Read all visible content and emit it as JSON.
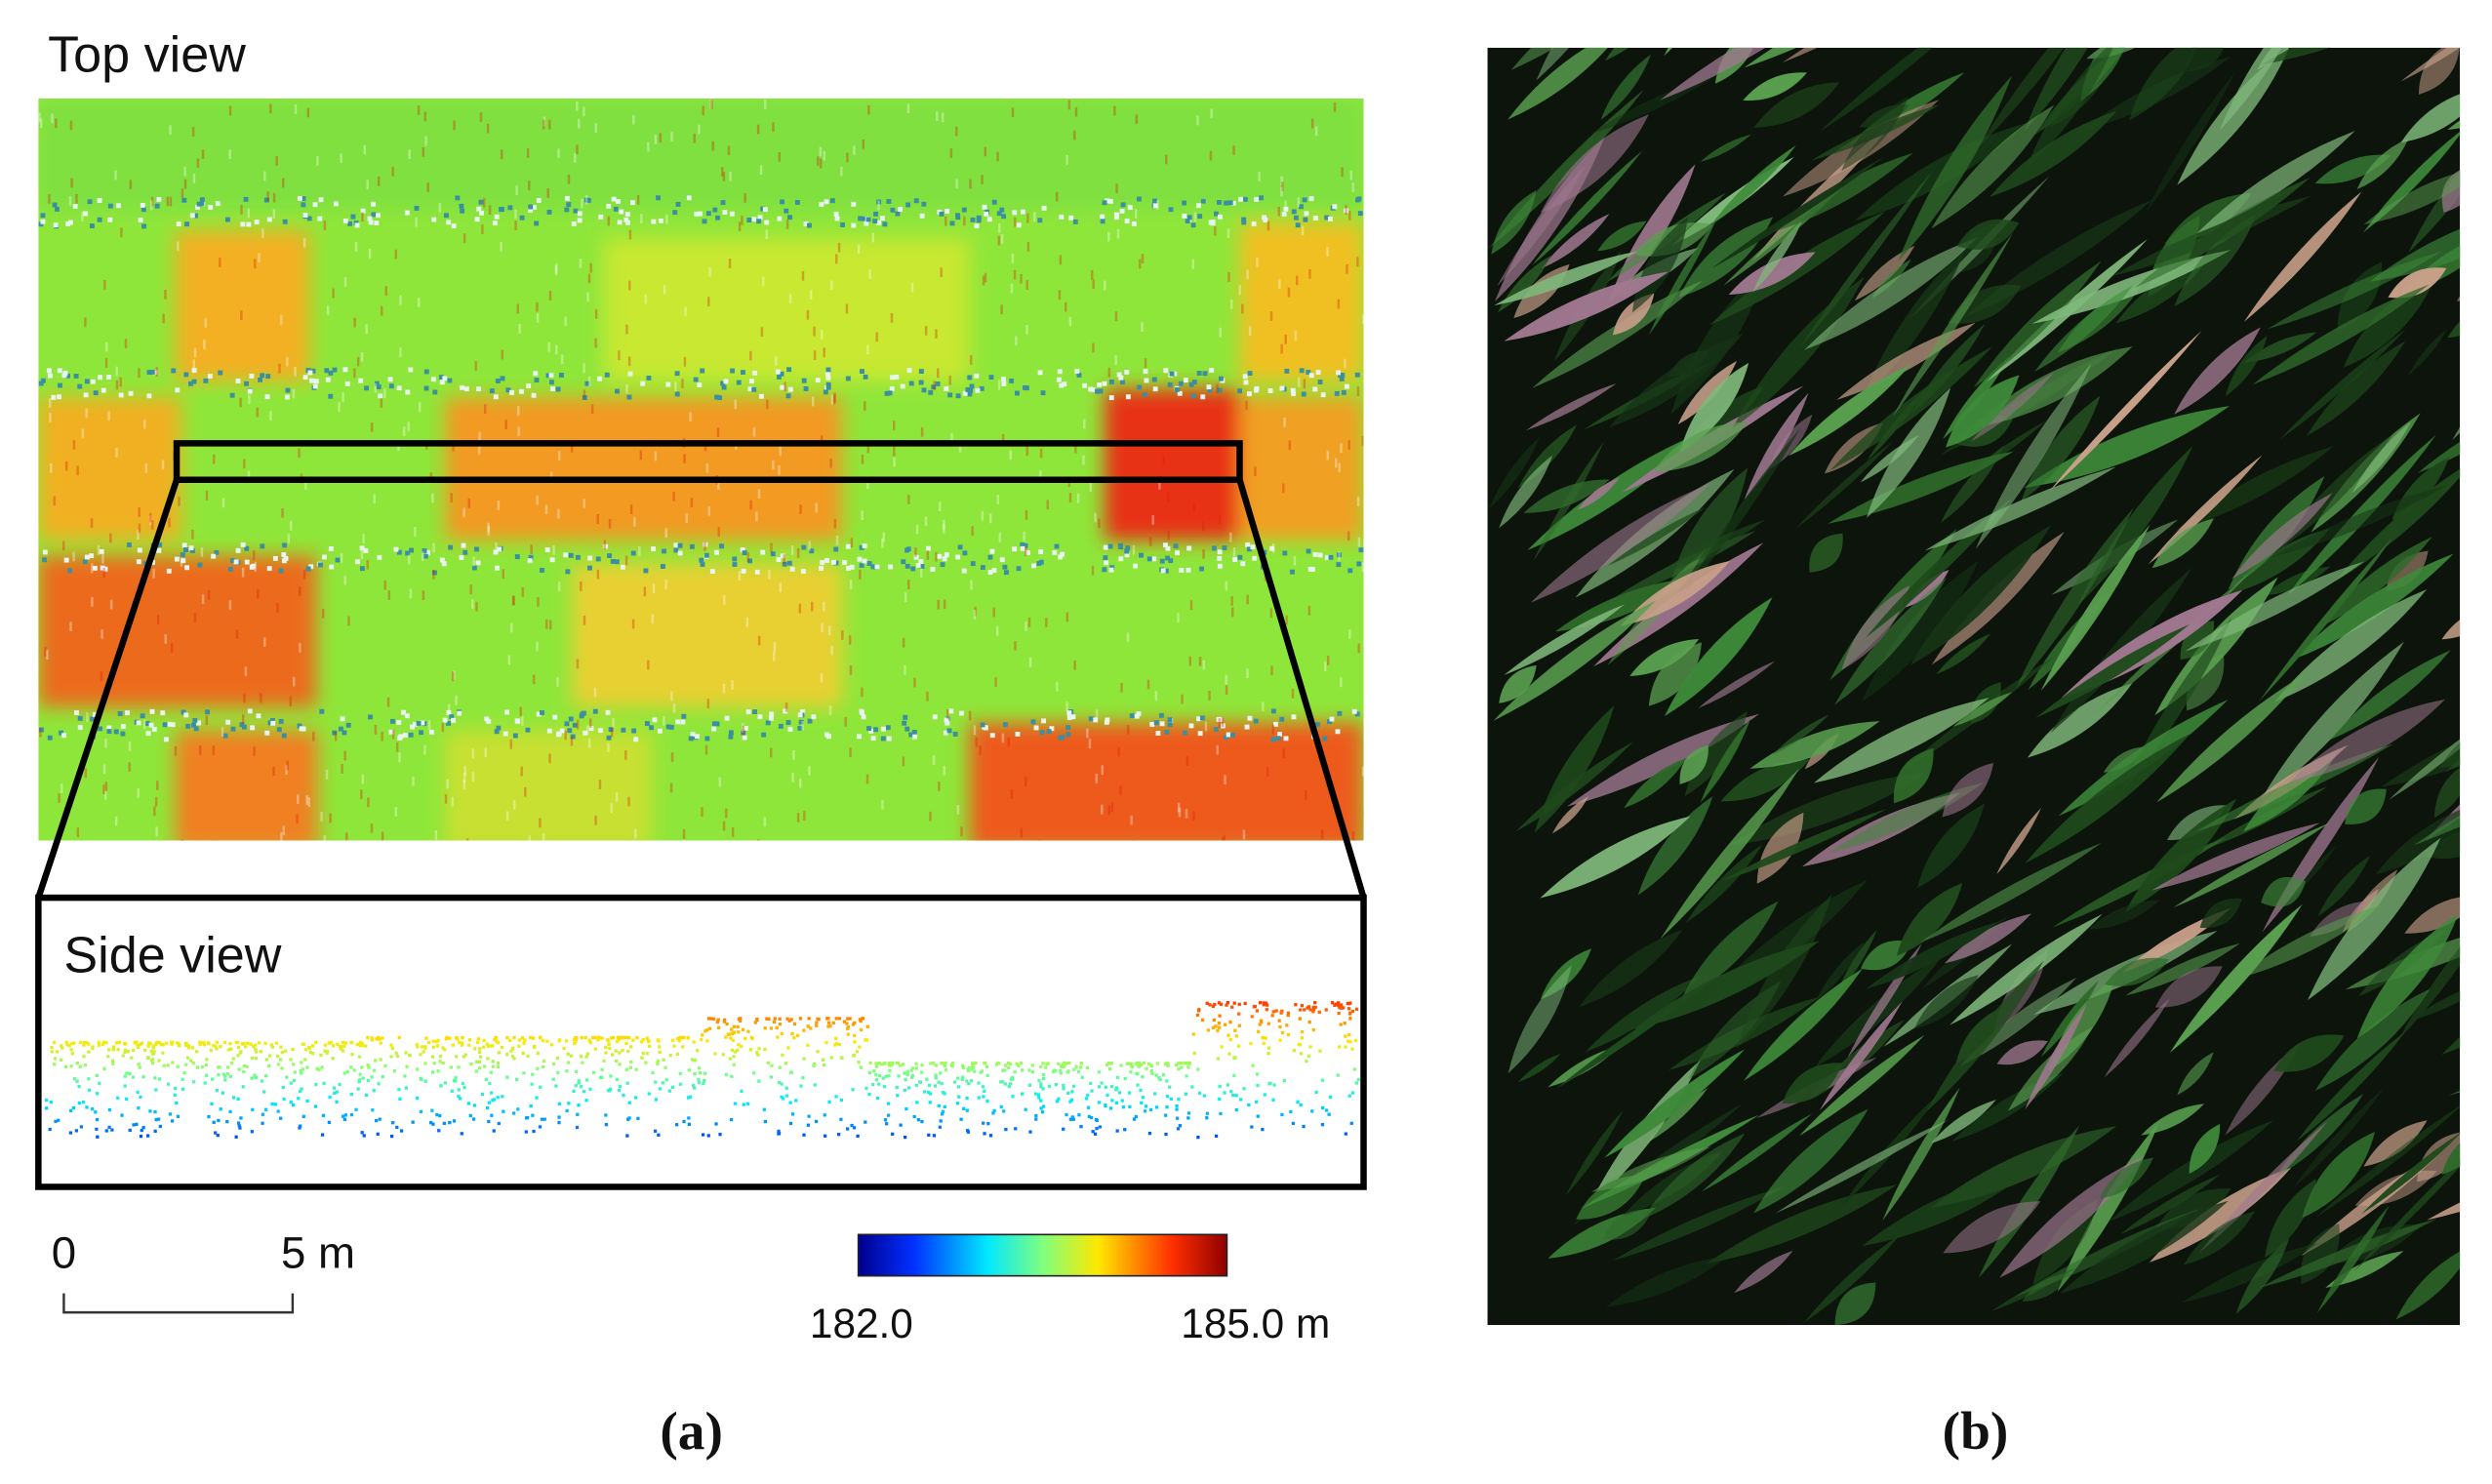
{
  "panels": {
    "a": {
      "top_view_label": "Top view",
      "side_view_label": "Side view",
      "scale_bar": {
        "start_label": "0",
        "end_label": "5 m"
      },
      "color_bar": {
        "min_label": "182.0",
        "max_label": "185.0 m"
      },
      "caption": "(a)"
    },
    "b": {
      "caption": "(b)"
    }
  }
}
